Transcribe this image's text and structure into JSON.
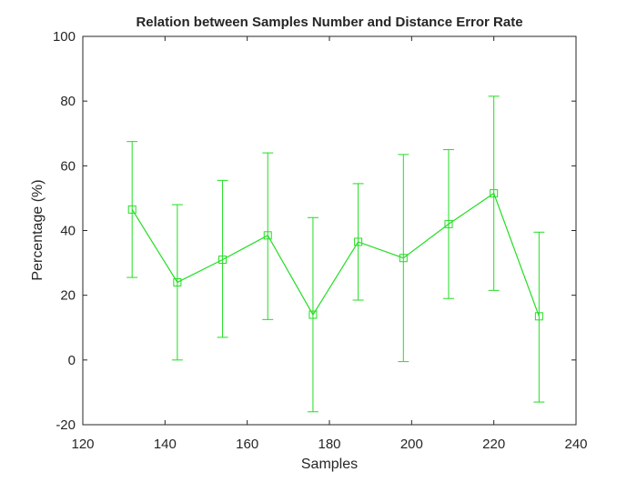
{
  "chart_data": {
    "type": "line",
    "title": "Relation between Samples Number and Distance Error Rate",
    "xlabel": "Samples",
    "ylabel": "Percentage (%)",
    "xlim": [
      120,
      240
    ],
    "ylim": [
      -20,
      100
    ],
    "xticks": [
      120,
      140,
      160,
      180,
      200,
      220,
      240
    ],
    "yticks": [
      -20,
      0,
      20,
      40,
      60,
      80,
      100
    ],
    "grid": false,
    "series": [
      {
        "color": "#22dd22",
        "marker": "square",
        "x": [
          132,
          143,
          154,
          165,
          176,
          187,
          198,
          209,
          220,
          231
        ],
        "y": [
          46.5,
          24,
          31,
          38.5,
          14,
          36.5,
          31.5,
          42,
          51.5,
          13.5
        ],
        "err_low": [
          25.5,
          0,
          7,
          12.5,
          -16,
          18.5,
          -0.5,
          19,
          21.5,
          -13
        ],
        "err_high": [
          67.5,
          48,
          55.5,
          64,
          44,
          54.5,
          63.5,
          65,
          81.5,
          39.5
        ]
      }
    ]
  }
}
